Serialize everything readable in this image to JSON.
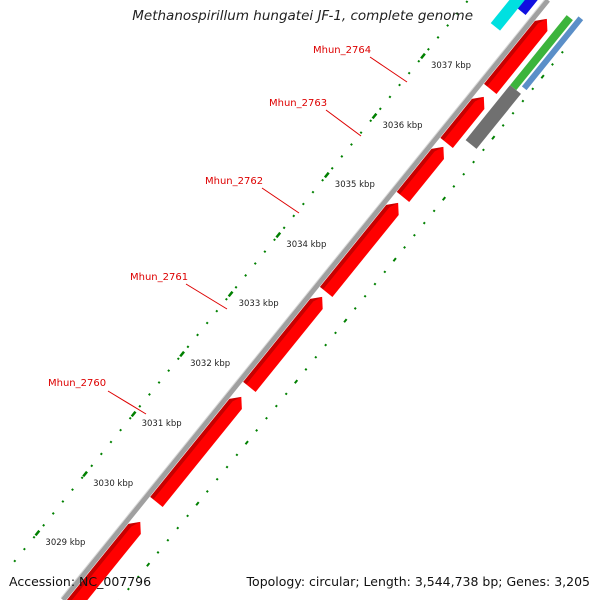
{
  "title": "Methanospirillum hungatei JF-1, complete genome",
  "footer": {
    "accession_label": "Accession:",
    "accession": "NC_007796",
    "topology_label": "Topology:",
    "topology": "circular",
    "length_label": "Length:",
    "length": "3,544,738 bp",
    "genes_label": "Genes:",
    "genes": "3,205"
  },
  "colors": {
    "gene_red": "#ff0000",
    "gene_gray": "#707070",
    "gene_green": "#3cb43c",
    "gene_steelblue": "#5b8fc8",
    "gene_blue": "#1010e0",
    "gene_cyan": "#00e0e0",
    "backbone": "#a0a0a0",
    "tick": "#008000",
    "label": "#dd0000"
  },
  "ticks": [
    {
      "label": "3029 kbp"
    },
    {
      "label": "3030 kbp"
    },
    {
      "label": "3031 kbp"
    },
    {
      "label": "3032 kbp"
    },
    {
      "label": "3033 kbp"
    },
    {
      "label": "3034 kbp"
    },
    {
      "label": "3035 kbp"
    },
    {
      "label": "3036 kbp"
    },
    {
      "label": "3037 kbp"
    }
  ],
  "gene_labels": [
    {
      "name": "Mhun_2760"
    },
    {
      "name": "Mhun_2761"
    },
    {
      "name": "Mhun_2762"
    },
    {
      "name": "Mhun_2763"
    },
    {
      "name": "Mhun_2764"
    }
  ]
}
